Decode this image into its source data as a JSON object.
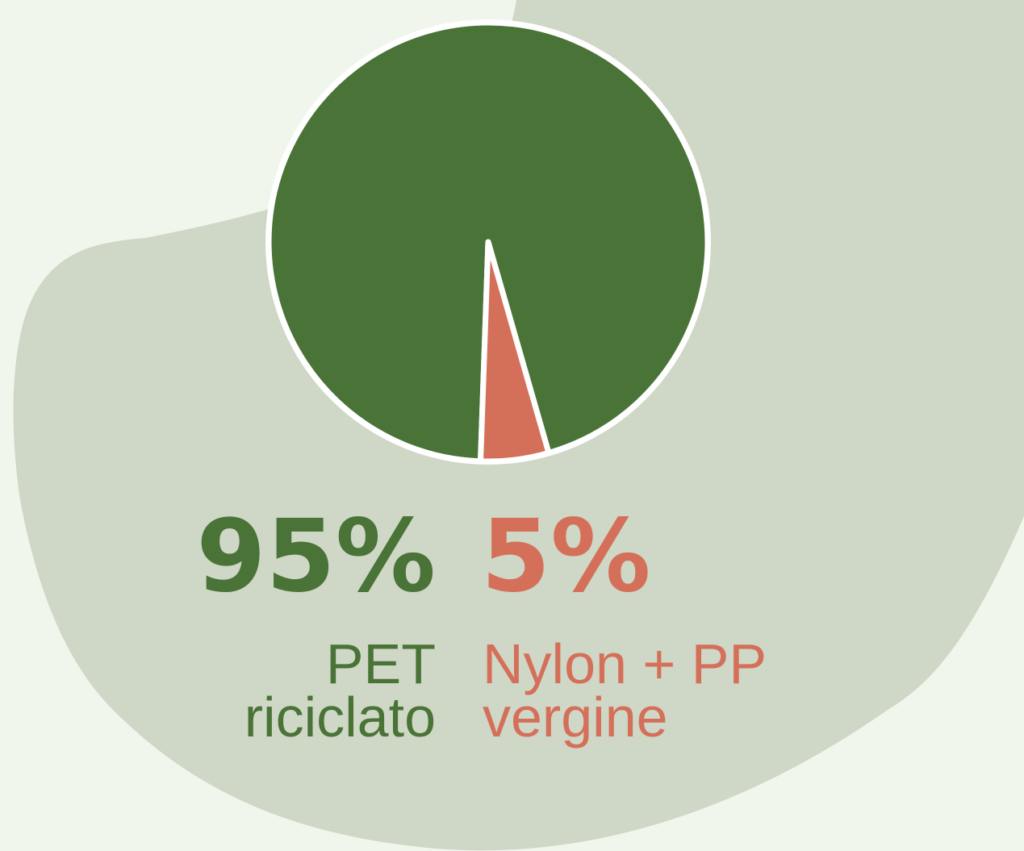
{
  "chart_data": {
    "type": "pie",
    "categories": [
      "PET riciclato",
      "Nylon + PP vergine"
    ],
    "values": [
      95,
      5
    ],
    "value_labels": [
      "95%",
      "5%"
    ],
    "colors": [
      "#4a7337",
      "#d4705a"
    ]
  }
}
